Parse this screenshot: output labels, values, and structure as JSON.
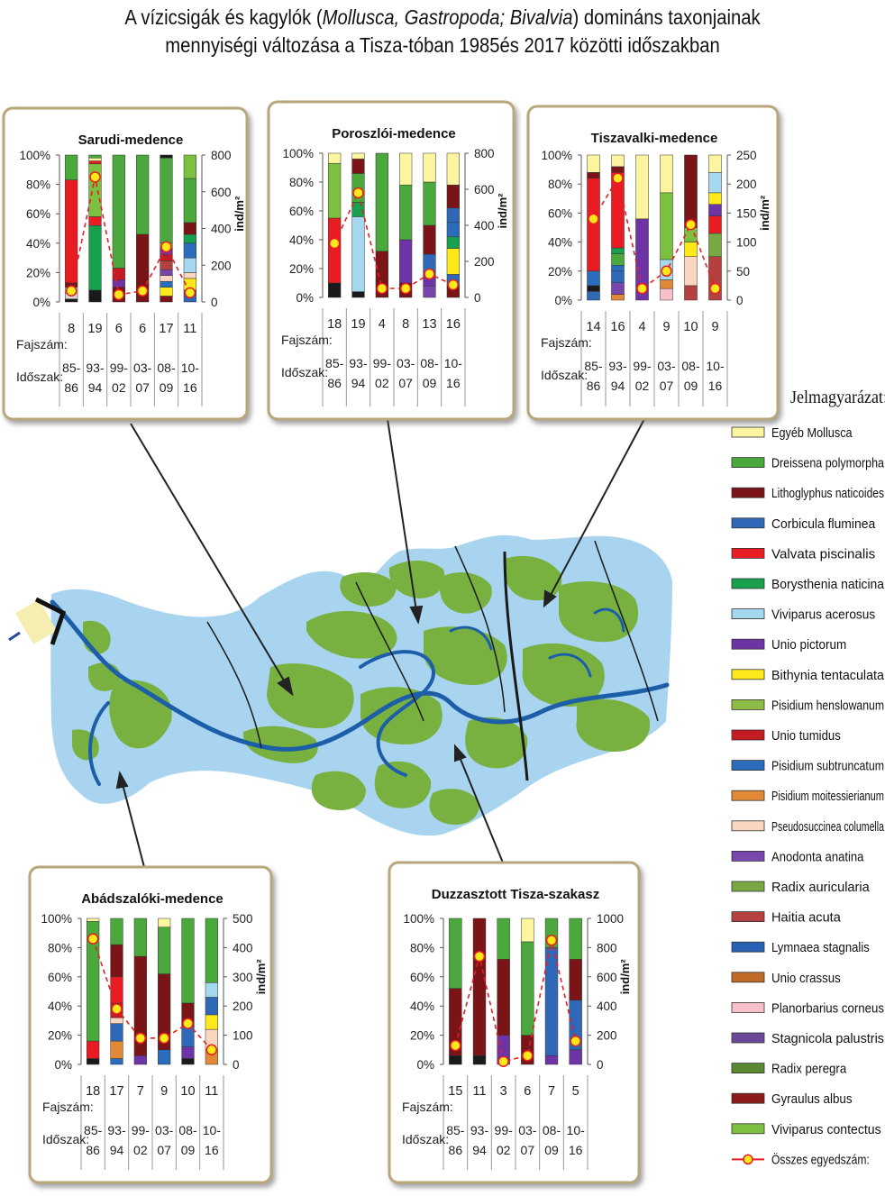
{
  "title": {
    "line1_a": "A vízicsigák és kagylók (",
    "line1_b": "Mollusca, Gastropoda; Bivalvia",
    "line1_c": ") domináns taxonjainak",
    "line2": "mennyiségi változása a Tisza-tóban 1985és 2017 közötti időszakban"
  },
  "labels": {
    "fajszam": "Fajszám:",
    "idoszak": "Időszak:",
    "unit": "ind/m²"
  },
  "legend": {
    "title": "Jelmagyarázat:",
    "items": [
      {
        "name": "Egyéb Mollusca",
        "color": "#fcf5a0"
      },
      {
        "name": "Dreissena polymorpha",
        "color": "#4aa83c"
      },
      {
        "name": "Lithoglyphus naticoides",
        "color": "#7a1416"
      },
      {
        "name": "Corbicula fluminea",
        "color": "#3068b8"
      },
      {
        "name": "Valvata piscinalis",
        "color": "#e81c22"
      },
      {
        "name": "Borysthenia naticina",
        "color": "#18a04c"
      },
      {
        "name": "Viviparus acerosus",
        "color": "#a4d8ee"
      },
      {
        "name": "Unio pictorum",
        "color": "#6e34a6"
      },
      {
        "name": "Bithynia tentaculata",
        "color": "#fde81a"
      },
      {
        "name": "Pisidium henslowanum",
        "color": "#8cbc44"
      },
      {
        "name": "Unio tumidus",
        "color": "#c41c22"
      },
      {
        "name": "Pisidium subtruncatum",
        "color": "#2c6cbc"
      },
      {
        "name": "Pisidium moitessierianum",
        "color": "#e08a38"
      },
      {
        "name": "Pseudosuccinea columella",
        "color": "#fad6c0"
      },
      {
        "name": "Anodonta anatina",
        "color": "#7846ac"
      },
      {
        "name": "Radix auricularia",
        "color": "#78a844"
      },
      {
        "name": "Haitia acuta",
        "color": "#b44040"
      },
      {
        "name": "Lymnaea stagnalis",
        "color": "#2860b4"
      },
      {
        "name": "Unio crassus",
        "color": "#c06a28"
      },
      {
        "name": "Planorbarius corneus",
        "color": "#f8c0c8"
      },
      {
        "name": "Stagnicola palustris",
        "color": "#6a4a98"
      },
      {
        "name": "Radix peregra",
        "color": "#5a8830"
      },
      {
        "name": "Gyraulus albus",
        "color": "#8c1c1c"
      },
      {
        "name": "Viviparus contectus",
        "color": "#7cc040"
      },
      {
        "name": "Összes egyedszám:",
        "color": "#e81c22"
      }
    ]
  },
  "chart_data": [
    {
      "type": "bar",
      "title": "Sarudi-medence",
      "categories": [
        "85-86",
        "93-94",
        "99-02",
        "03-07",
        "08-09",
        "10-16"
      ],
      "species_counts": [
        8,
        19,
        6,
        6,
        17,
        11
      ],
      "left_axis": {
        "ticks": [
          "100%",
          "80%",
          "60%",
          "40%",
          "20%",
          "0%"
        ]
      },
      "right_axis": {
        "label": "ind/m²",
        "max": 800,
        "ticks": [
          "800",
          "600",
          "400",
          "200",
          "0"
        ]
      },
      "total_density": [
        60,
        680,
        40,
        60,
        300,
        50
      ],
      "stacks": [
        [
          [
            "#1a1a1a",
            2
          ],
          [
            "#d8d8d8",
            4
          ],
          [
            "#a4d8ee",
            4
          ],
          [
            "#7a1416",
            3
          ],
          [
            "#e81c22",
            70
          ],
          [
            "#4aa83c",
            17
          ]
        ],
        [
          [
            "#1a1a1a",
            8
          ],
          [
            "#18a04c",
            44
          ],
          [
            "#e81c22",
            6
          ],
          [
            "#7cc040",
            36
          ],
          [
            "#e81c22",
            2
          ],
          [
            "#fcf5a0",
            2
          ],
          [
            "#4aa83c",
            2
          ]
        ],
        [
          [
            "#7a1416",
            10
          ],
          [
            "#6e34a6",
            5
          ],
          [
            "#c41c22",
            8
          ],
          [
            "#4aa83c",
            77
          ]
        ],
        [
          [
            "#7a1416",
            46
          ],
          [
            "#4aa83c",
            54
          ]
        ],
        [
          [
            "#7a1416",
            4
          ],
          [
            "#fde81a",
            6
          ],
          [
            "#2c6cbc",
            4
          ],
          [
            "#fad6c0",
            4
          ],
          [
            "#7846ac",
            4
          ],
          [
            "#b44040",
            6
          ],
          [
            "#c41c22",
            4
          ],
          [
            "#6e34a6",
            4
          ],
          [
            "#8cbc44",
            4
          ],
          [
            "#4aa83c",
            58
          ],
          [
            "#1a1a1a",
            2
          ]
        ],
        [
          [
            "#3068b8",
            8
          ],
          [
            "#fde81a",
            8
          ],
          [
            "#fad6c0",
            4
          ],
          [
            "#a4d8ee",
            10
          ],
          [
            "#2c6cbc",
            10
          ],
          [
            "#18a04c",
            6
          ],
          [
            "#7a1416",
            8
          ],
          [
            "#4aa83c",
            30
          ],
          [
            "#7cc040",
            16
          ]
        ]
      ]
    },
    {
      "type": "bar",
      "title": "Poroszlói-medence",
      "categories": [
        "85-86",
        "93-94",
        "99-02",
        "03-07",
        "08-09",
        "10-16"
      ],
      "species_counts": [
        18,
        19,
        4,
        8,
        13,
        16
      ],
      "left_axis": {
        "ticks": [
          "100%",
          "80%",
          "60%",
          "40%",
          "20%",
          "0%"
        ]
      },
      "right_axis": {
        "label": "ind/m²",
        "max": 800,
        "ticks": [
          "800",
          "600",
          "400",
          "200",
          "0"
        ]
      },
      "total_density": [
        300,
        580,
        50,
        50,
        130,
        70
      ],
      "stacks": [
        [
          [
            "#1a1a1a",
            10
          ],
          [
            "#e81c22",
            45
          ],
          [
            "#7cc040",
            38
          ],
          [
            "#fcf5a0",
            7
          ]
        ],
        [
          [
            "#1a1a1a",
            4
          ],
          [
            "#a4d8ee",
            52
          ],
          [
            "#18a04c",
            10
          ],
          [
            "#4aa83c",
            20
          ],
          [
            "#7a1416",
            10
          ],
          [
            "#fcf5a0",
            4
          ]
        ],
        [
          [
            "#7a1416",
            32
          ],
          [
            "#4aa83c",
            68
          ]
        ],
        [
          [
            "#7a1416",
            10
          ],
          [
            "#6e34a6",
            30
          ],
          [
            "#4aa83c",
            38
          ],
          [
            "#fcf5a0",
            22
          ]
        ],
        [
          [
            "#7846ac",
            8
          ],
          [
            "#6e34a6",
            10
          ],
          [
            "#3068b8",
            12
          ],
          [
            "#7a1416",
            20
          ],
          [
            "#4aa83c",
            30
          ],
          [
            "#fcf5a0",
            20
          ]
        ],
        [
          [
            "#7a1416",
            8
          ],
          [
            "#3068b8",
            8
          ],
          [
            "#fde81a",
            18
          ],
          [
            "#18a04c",
            8
          ],
          [
            "#2c6cbc",
            10
          ],
          [
            "#3068b8",
            10
          ],
          [
            "#7a1416",
            16
          ],
          [
            "#fcf5a0",
            22
          ]
        ]
      ]
    },
    {
      "type": "bar",
      "title": "Tiszavalki-medence",
      "categories": [
        "85-86",
        "93-94",
        "99-02",
        "03-07",
        "08-09",
        "10-16"
      ],
      "species_counts": [
        14,
        16,
        4,
        9,
        10,
        9
      ],
      "left_axis": {
        "ticks": [
          "100%",
          "80%",
          "60%",
          "40%",
          "20%",
          "0%"
        ]
      },
      "right_axis": {
        "label": "ind/m²",
        "max": 250,
        "ticks": [
          "250",
          "200",
          "150",
          "100",
          "50",
          "0"
        ]
      },
      "total_density": [
        140,
        210,
        20,
        50,
        130,
        20
      ],
      "stacks": [
        [
          [
            "#3068b8",
            6
          ],
          [
            "#1a1a1a",
            4
          ],
          [
            "#2c6cbc",
            10
          ],
          [
            "#e81c22",
            64
          ],
          [
            "#7a1416",
            4
          ],
          [
            "#fcf5a0",
            12
          ]
        ],
        [
          [
            "#e08a38",
            4
          ],
          [
            "#7846ac",
            8
          ],
          [
            "#3068b8",
            8
          ],
          [
            "#2c6cbc",
            4
          ],
          [
            "#4aa83c",
            8
          ],
          [
            "#18a04c",
            4
          ],
          [
            "#e81c22",
            52
          ],
          [
            "#7a1416",
            4
          ],
          [
            "#fcf5a0",
            8
          ]
        ],
        [
          [
            "#6e34a6",
            56
          ],
          [
            "#fcf5a0",
            44
          ]
        ],
        [
          [
            "#f8c0c8",
            8
          ],
          [
            "#e08a38",
            6
          ],
          [
            "#a4d8ee",
            14
          ],
          [
            "#7cc040",
            46
          ],
          [
            "#fcf5a0",
            26
          ]
        ],
        [
          [
            "#b44040",
            10
          ],
          [
            "#fad6c0",
            20
          ],
          [
            "#fde81a",
            10
          ],
          [
            "#7cc040",
            10
          ],
          [
            "#7a1416",
            50
          ]
        ],
        [
          [
            "#b44040",
            30
          ],
          [
            "#78a844",
            16
          ],
          [
            "#e81c22",
            12
          ],
          [
            "#6e34a6",
            8
          ],
          [
            "#fde81a",
            8
          ],
          [
            "#a4d8ee",
            14
          ],
          [
            "#fcf5a0",
            12
          ]
        ]
      ]
    },
    {
      "type": "bar",
      "title": "Abádszalóki-medence",
      "categories": [
        "85-86",
        "93-94",
        "99-02",
        "03-07",
        "08-09",
        "10-16"
      ],
      "species_counts": [
        18,
        17,
        7,
        9,
        10,
        11
      ],
      "left_axis": {
        "ticks": [
          "100%",
          "80%",
          "60%",
          "40%",
          "20%",
          "0%"
        ]
      },
      "right_axis": {
        "label": "ind/m²",
        "max": 500,
        "ticks": [
          "500",
          "400",
          "300",
          "200",
          "100",
          "0"
        ]
      },
      "total_density": [
        430,
        190,
        90,
        90,
        140,
        50
      ],
      "stacks": [
        [
          [
            "#1a1a1a",
            4
          ],
          [
            "#e81c22",
            12
          ],
          [
            "#4aa83c",
            82
          ],
          [
            "#fcf5a0",
            2
          ]
        ],
        [
          [
            "#2c6cbc",
            4
          ],
          [
            "#e08a38",
            12
          ],
          [
            "#3068b8",
            12
          ],
          [
            "#fad6c0",
            4
          ],
          [
            "#c41c22",
            10
          ],
          [
            "#e81c22",
            18
          ],
          [
            "#7a1416",
            22
          ],
          [
            "#4aa83c",
            18
          ]
        ],
        [
          [
            "#6e34a6",
            6
          ],
          [
            "#7a1416",
            68
          ],
          [
            "#4aa83c",
            26
          ]
        ],
        [
          [
            "#2c6cbc",
            10
          ],
          [
            "#7a1416",
            52
          ],
          [
            "#4aa83c",
            32
          ],
          [
            "#fcf5a0",
            6
          ]
        ],
        [
          [
            "#1a1a1a",
            4
          ],
          [
            "#6e34a6",
            8
          ],
          [
            "#3068b8",
            14
          ],
          [
            "#7a1416",
            16
          ],
          [
            "#4aa83c",
            58
          ]
        ],
        [
          [
            "#e08a38",
            10
          ],
          [
            "#fad6c0",
            14
          ],
          [
            "#fde81a",
            10
          ],
          [
            "#3068b8",
            12
          ],
          [
            "#a4d8ee",
            10
          ],
          [
            "#4aa83c",
            44
          ]
        ]
      ]
    },
    {
      "type": "bar",
      "title": "Duzzasztott Tisza-szakasz",
      "categories": [
        "85-86",
        "93-94",
        "99-02",
        "03-07",
        "08-09",
        "10-16"
      ],
      "species_counts": [
        15,
        11,
        3,
        6,
        7,
        5
      ],
      "left_axis": {
        "ticks": [
          "100%",
          "80%",
          "60%",
          "40%",
          "20%",
          "0%"
        ]
      },
      "right_axis": {
        "label": "ind/m²",
        "max": 1000,
        "ticks": [
          "1000",
          "800",
          "600",
          "400",
          "200",
          "0"
        ]
      },
      "total_density": [
        130,
        740,
        20,
        60,
        850,
        160
      ],
      "stacks": [
        [
          [
            "#1a1a1a",
            6
          ],
          [
            "#7a1416",
            46
          ],
          [
            "#4aa83c",
            48
          ]
        ],
        [
          [
            "#1a1a1a",
            6
          ],
          [
            "#7a1416",
            94
          ]
        ],
        [
          [
            "#6e34a6",
            20
          ],
          [
            "#7a1416",
            52
          ],
          [
            "#4aa83c",
            28
          ]
        ],
        [
          [
            "#7a1416",
            20
          ],
          [
            "#4aa83c",
            64
          ],
          [
            "#fcf5a0",
            16
          ]
        ],
        [
          [
            "#6e34a6",
            6
          ],
          [
            "#3068b8",
            74
          ],
          [
            "#4aa83c",
            20
          ]
        ],
        [
          [
            "#6e34a6",
            10
          ],
          [
            "#3068b8",
            34
          ],
          [
            "#7a1416",
            28
          ],
          [
            "#4aa83c",
            28
          ]
        ]
      ]
    }
  ]
}
